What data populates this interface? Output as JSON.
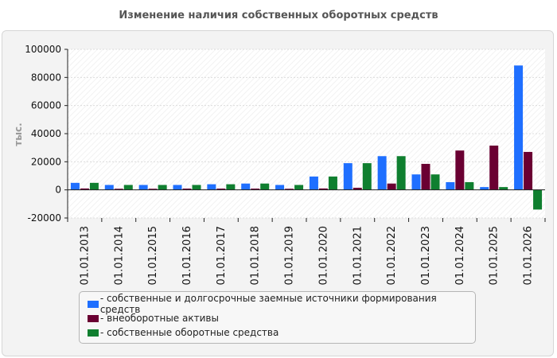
{
  "chart_data": {
    "type": "bar",
    "title": "Изменение наличия собственных оборотных средств",
    "ylabel": "тыс.",
    "xlabel": "",
    "ylim": [
      -20000,
      100000
    ],
    "yticks": [
      -20000,
      0,
      20000,
      40000,
      60000,
      80000,
      100000
    ],
    "grid": true,
    "legend_position": "bottom",
    "categories": [
      "01.01.2013",
      "01.01.2014",
      "01.01.2015",
      "01.01.2016",
      "01.01.2017",
      "01.01.2018",
      "01.01.2019",
      "01.01.2020",
      "01.01.2021",
      "01.01.2022",
      "01.01.2023",
      "01.01.2024",
      "01.01.2025",
      "01.01.2026"
    ],
    "series": [
      {
        "name": "- собственные и долгосрочные заемные источники формирования средств",
        "color": "#1f6fff",
        "values": [
          5000,
          3500,
          3500,
          3500,
          4000,
          4500,
          3500,
          9500,
          19000,
          24000,
          11000,
          5500,
          2000,
          88500
        ]
      },
      {
        "name": "- внеоборотные активы",
        "color": "#6a0032",
        "values": [
          1000,
          800,
          800,
          900,
          900,
          900,
          800,
          1000,
          1500,
          4500,
          18500,
          28000,
          31500,
          27000
        ]
      },
      {
        "name": "- собственные оборотные средства",
        "color": "#0f7f2f",
        "values": [
          5000,
          3500,
          3500,
          3500,
          4000,
          4500,
          3500,
          9500,
          19000,
          24000,
          11000,
          5500,
          2000,
          -14000
        ]
      }
    ]
  }
}
